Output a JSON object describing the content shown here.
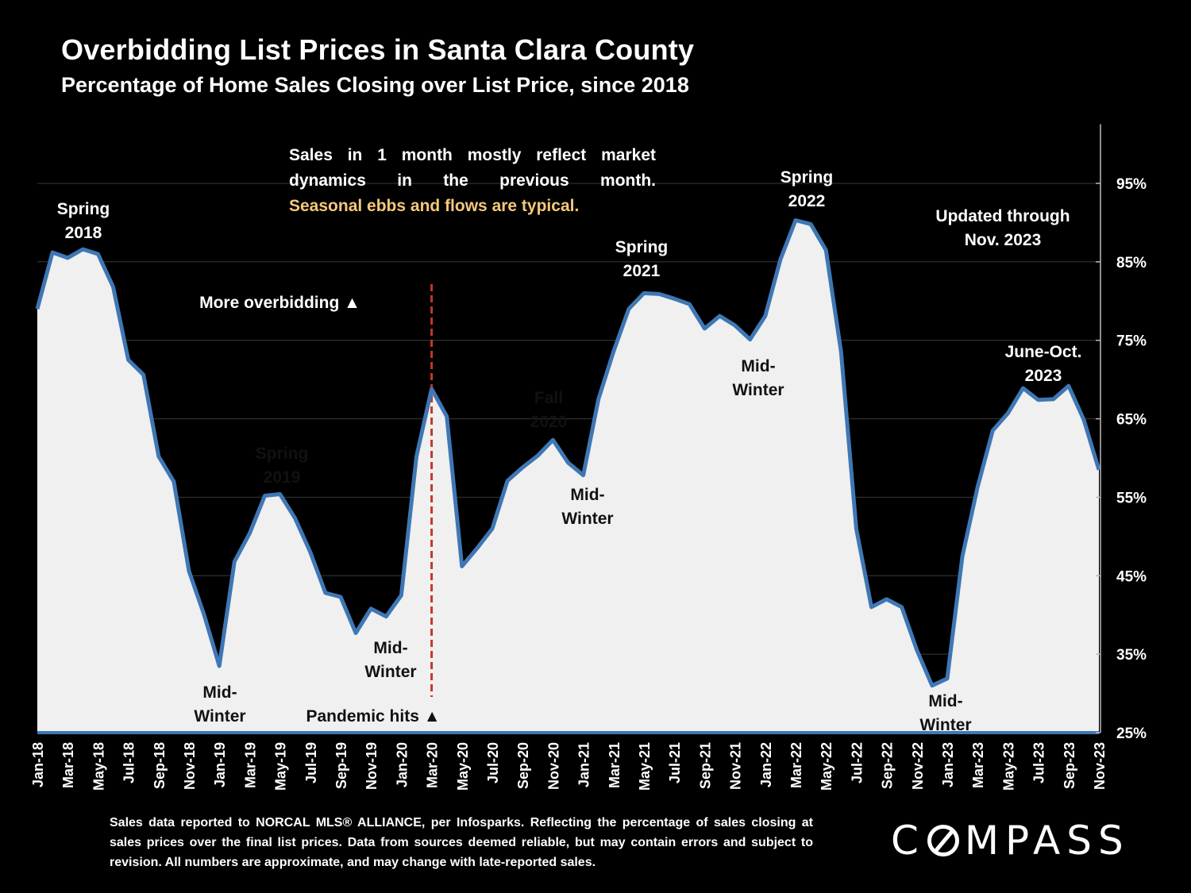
{
  "header": {
    "title": "Overbidding List Prices in Santa Clara County",
    "subtitle": "Percentage of Home Sales Closing over List Price, since 2018"
  },
  "note": {
    "line1": "Sales in 1 month mostly reflect market",
    "line2": "dynamics in the previous month.",
    "highlight": "Seasonal ebbs and flows are typical."
  },
  "annotations": {
    "spring_2018": [
      "Spring",
      "2018"
    ],
    "more_overbidding": "More overbidding ▲",
    "spring_2019": [
      "Spring",
      "2019"
    ],
    "midwinter_2019": [
      "Mid-",
      "Winter"
    ],
    "midwinter_2020": [
      "Mid-",
      "Winter"
    ],
    "pandemic": "Pandemic hits ▲",
    "fall_2020": [
      "Fall",
      "2020"
    ],
    "midwinter_2021": [
      "Mid-",
      "Winter"
    ],
    "spring_2021": [
      "Spring",
      "2021"
    ],
    "midwinter_2022": [
      "Mid-",
      "Winter"
    ],
    "spring_2022": [
      "Spring",
      "2022"
    ],
    "updated": [
      "Updated through",
      "Nov. 2023"
    ],
    "june_oct_2023": [
      "June-Oct.",
      "2023"
    ],
    "midwinter_2023": [
      "Mid-",
      "Winter"
    ]
  },
  "footer": {
    "text": "Sales data reported to NORCAL MLS® ALLIANCE, per Infosparks. Reflecting the percentage of sales closing at sales prices over the final list prices. Data from sources deemed reliable, but may contain errors and subject to revision. All numbers are approximate, and may change with late-reported sales."
  },
  "logo": {
    "text": "COMPASS"
  },
  "colors": {
    "line": "#3e77b5",
    "fill": "#f0f0f0",
    "marker": "#c0392b",
    "highlight": "#f6c87a"
  },
  "chart_data": {
    "type": "area",
    "title": "Overbidding List Prices in Santa Clara County",
    "subtitle": "Percentage of Home Sales Closing over List Price, since 2018",
    "xlabel": "",
    "ylabel": "",
    "ylim": [
      25,
      99
    ],
    "yticks": [
      25,
      35,
      45,
      55,
      65,
      75,
      85,
      95
    ],
    "ytick_labels": [
      "25%",
      "35%",
      "45%",
      "55%",
      "65%",
      "75%",
      "85%",
      "95%"
    ],
    "x_tick_labels": [
      "Jan-18",
      "Mar-18",
      "May-18",
      "Jul-18",
      "Sep-18",
      "Nov-18",
      "Jan-19",
      "Mar-19",
      "May-19",
      "Jul-19",
      "Sep-19",
      "Nov-19",
      "Jan-20",
      "Mar-20",
      "May-20",
      "Jul-20",
      "Sep-20",
      "Nov-20",
      "Jan-21",
      "Mar-21",
      "May-21",
      "Jul-21",
      "Sep-21",
      "Nov-21",
      "Jan-22",
      "Mar-22",
      "May-22",
      "Jul-22",
      "Sep-22",
      "Nov-22",
      "Jan-23",
      "Mar-23",
      "May-23",
      "Jul-23",
      "Sep-23",
      "Nov-23"
    ],
    "x": [
      "Jan-18",
      "Feb-18",
      "Mar-18",
      "Apr-18",
      "May-18",
      "Jun-18",
      "Jul-18",
      "Aug-18",
      "Sep-18",
      "Oct-18",
      "Nov-18",
      "Dec-18",
      "Jan-19",
      "Feb-19",
      "Mar-19",
      "Apr-19",
      "May-19",
      "Jun-19",
      "Jul-19",
      "Aug-19",
      "Sep-19",
      "Oct-19",
      "Nov-19",
      "Dec-19",
      "Jan-20",
      "Feb-20",
      "Mar-20",
      "Apr-20",
      "May-20",
      "Jun-20",
      "Jul-20",
      "Aug-20",
      "Sep-20",
      "Oct-20",
      "Nov-20",
      "Dec-20",
      "Jan-21",
      "Feb-21",
      "Mar-21",
      "Apr-21",
      "May-21",
      "Jun-21",
      "Jul-21",
      "Aug-21",
      "Sep-21",
      "Oct-21",
      "Nov-21",
      "Dec-21",
      "Jan-22",
      "Feb-22",
      "Mar-22",
      "Apr-22",
      "May-22",
      "Jun-22",
      "Jul-22",
      "Aug-22",
      "Sep-22",
      "Oct-22",
      "Nov-22",
      "Dec-22",
      "Jan-23",
      "Feb-23",
      "Mar-23",
      "Apr-23",
      "May-23",
      "Jun-23",
      "Jul-23",
      "Aug-23",
      "Sep-23",
      "Oct-23",
      "Nov-23"
    ],
    "series": [
      {
        "name": "Percentage of Home Sales Closing over List Price",
        "values": [
          79,
          86.2,
          85.5,
          86.6,
          86,
          81.8,
          72.5,
          70.6,
          60.2,
          57,
          45.6,
          40,
          33.5,
          46.8,
          50.4,
          55.2,
          55.4,
          52.3,
          48,
          42.8,
          42.3,
          37.7,
          40.8,
          39.8,
          42.5,
          60.2,
          68.8,
          65.3,
          46.2,
          48.5,
          51,
          57.1,
          58.8,
          60.3,
          62.3,
          59.4,
          57.8,
          67.5,
          73.6,
          79,
          81,
          80.9,
          80.3,
          79.6,
          76.5,
          78.1,
          76.9,
          75.1,
          78.1,
          85.3,
          90.3,
          89.8,
          86.5,
          73.5,
          51,
          41,
          42,
          41,
          35.5,
          31,
          31.9,
          47.5,
          56.3,
          63.5,
          65.7,
          68.9,
          67.4,
          67.5,
          69.2,
          64.9,
          58.5
        ]
      }
    ],
    "vertical_marker": {
      "x": "Mar-20",
      "label": "Pandemic hits ▲"
    },
    "grid": true,
    "legend": "none"
  }
}
